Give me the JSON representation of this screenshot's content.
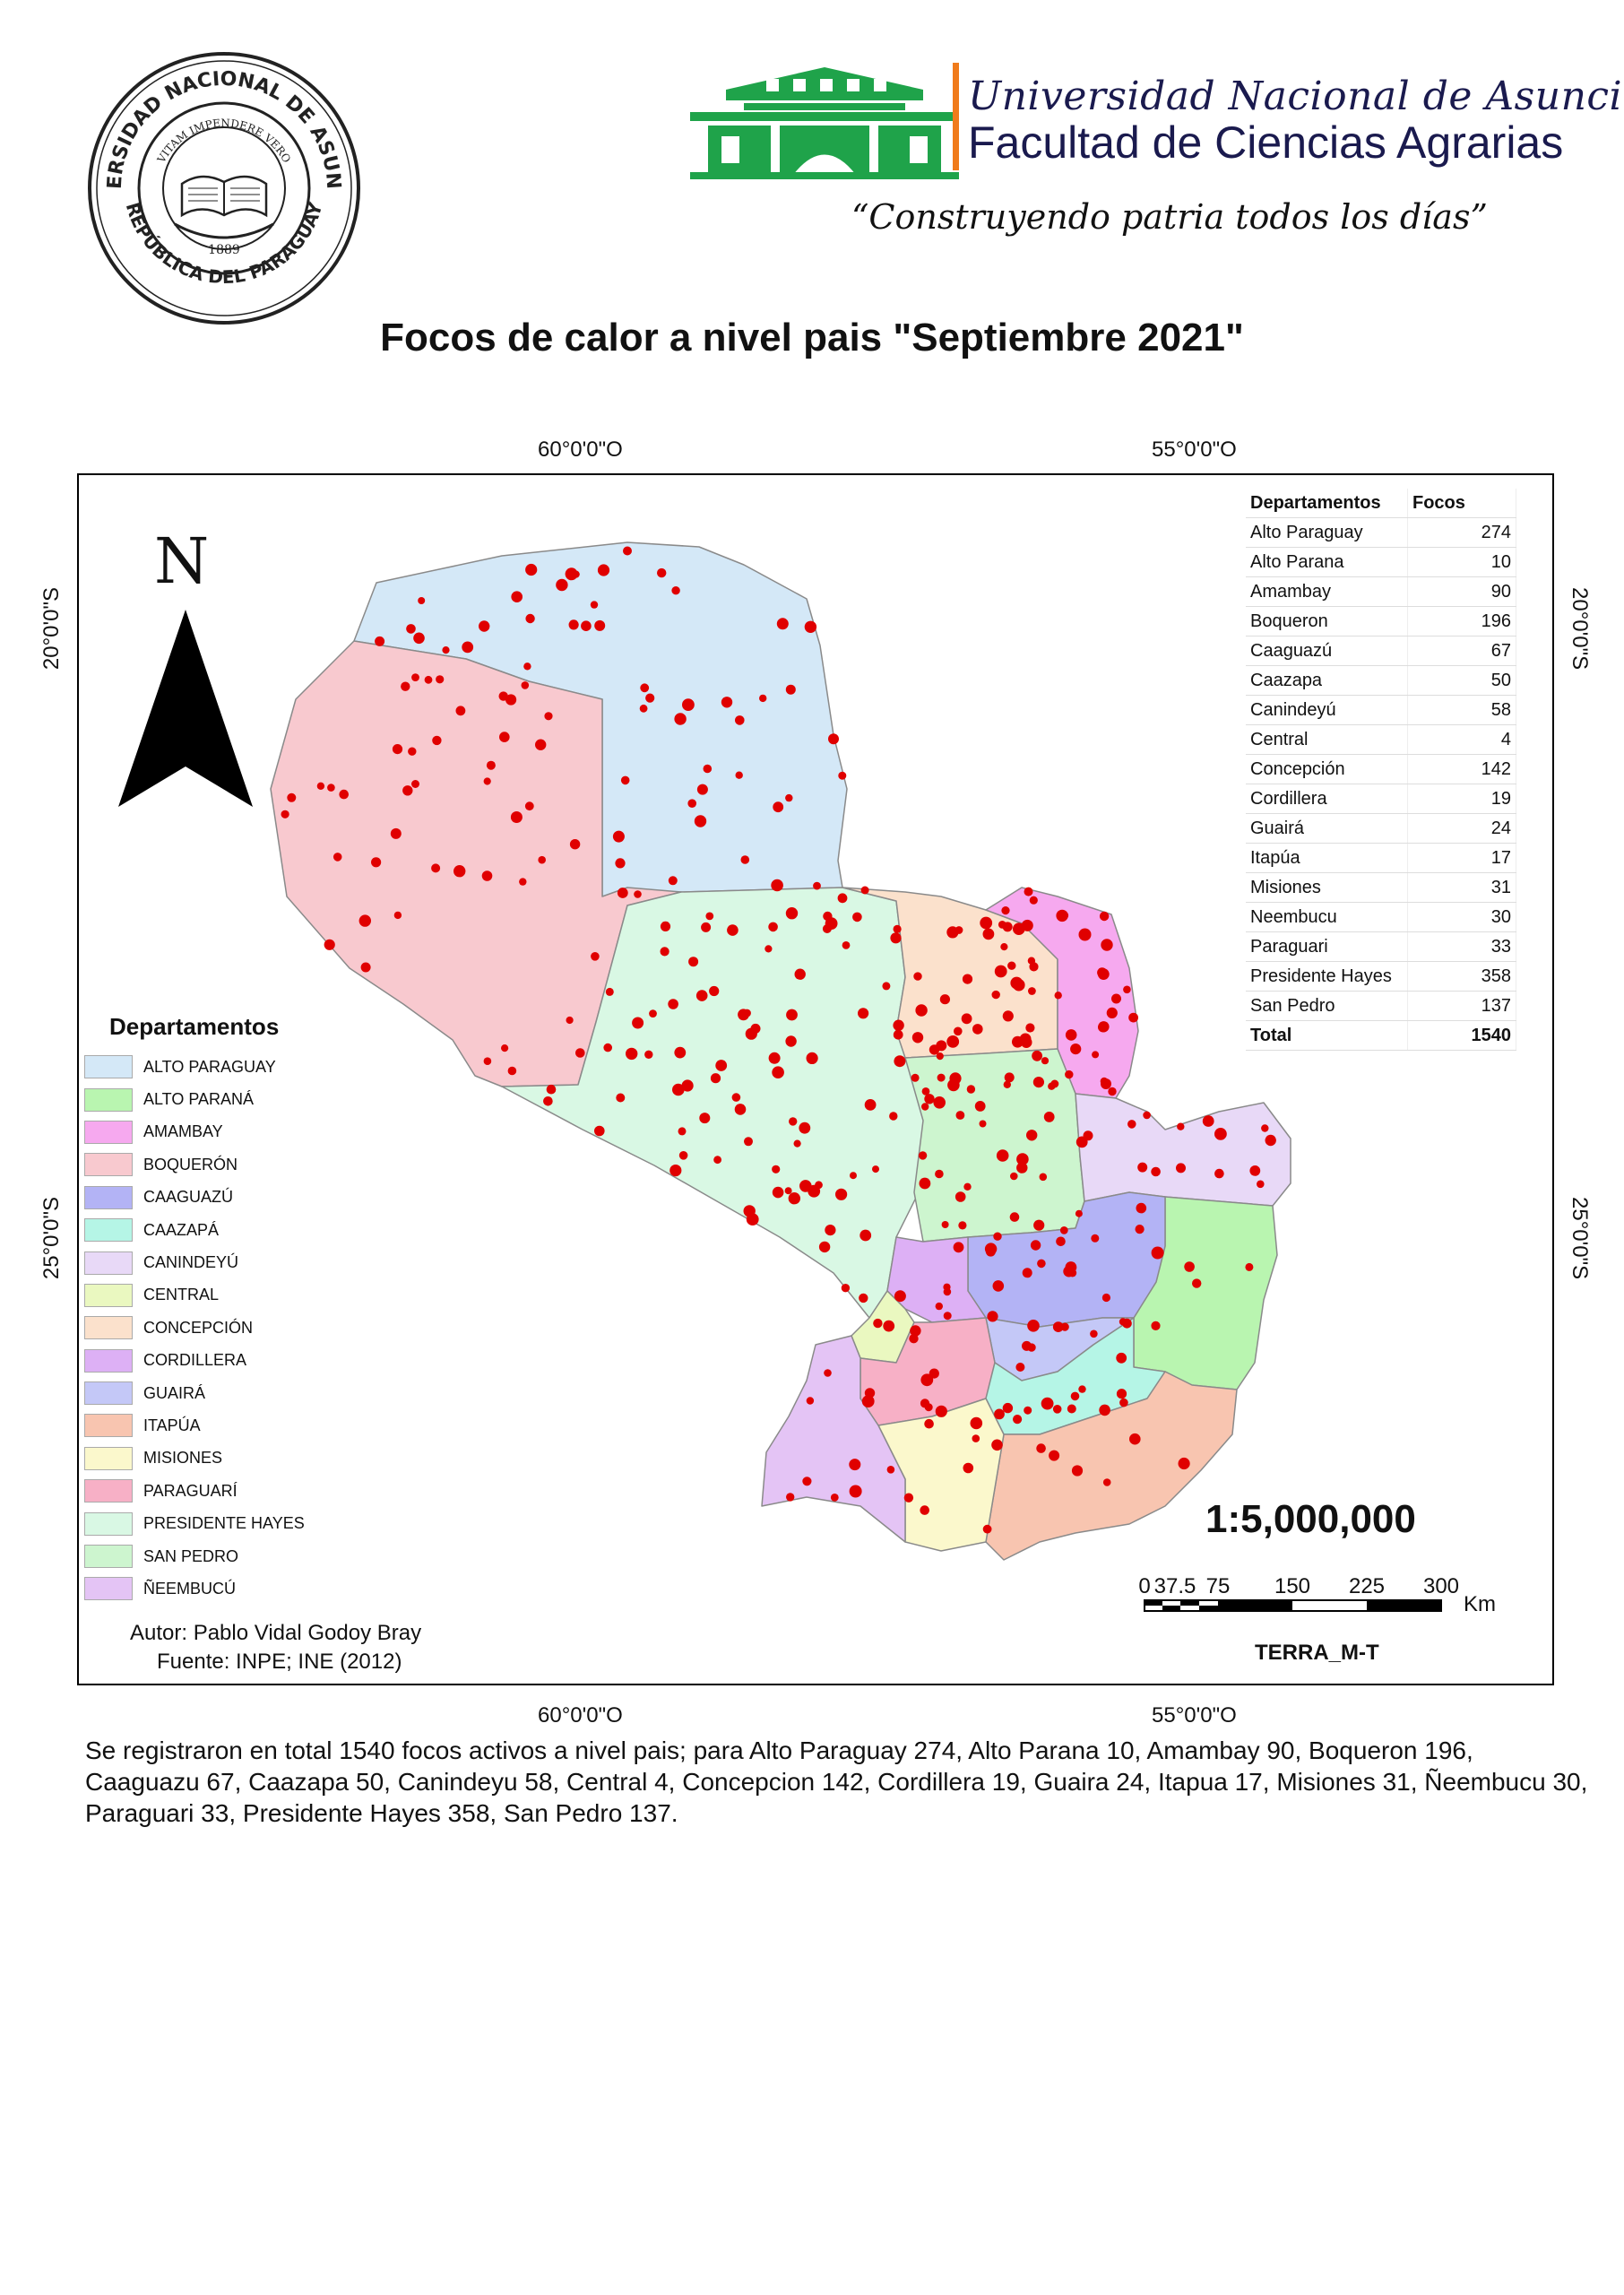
{
  "header": {
    "seal_text_top": "UNIVERSIDAD NACIONAL DE ASUNCIÓN",
    "seal_text_motto": "VITAM IMPENDERE VERO",
    "seal_year": "1889",
    "seal_text_bottom": "REPÚBLICA DEL PARAGUAY",
    "university": "Universidad Nacional de Asunción",
    "faculty": "Facultad de Ciencias Agrarias",
    "motto": "“Construyendo patria todos los días”"
  },
  "title": "Focos de calor a nivel pais \"Septiembre 2021\"",
  "coords": {
    "top_left": "60°0'0\"O",
    "top_right": "55°0'0\"O",
    "bottom_left": "60°0'0\"O",
    "bottom_right": "55°0'0\"O",
    "left_upper": "20°0'0\"S",
    "left_lower": "25°0'0\"S",
    "right_upper": "20°0'0\"S",
    "right_lower": "25°0'0\"S"
  },
  "north_label": "N",
  "table": {
    "header_name": "Departamentos",
    "header_value": "Focos",
    "rows": [
      {
        "name": "Alto Paraguay",
        "value": "274"
      },
      {
        "name": "Alto Parana",
        "value": "10"
      },
      {
        "name": "Amambay",
        "value": "90"
      },
      {
        "name": "Boqueron",
        "value": "196"
      },
      {
        "name": "Caaguazú",
        "value": "67"
      },
      {
        "name": "Caazapa",
        "value": "50"
      },
      {
        "name": "Canindeyú",
        "value": "58"
      },
      {
        "name": "Central",
        "value": "4"
      },
      {
        "name": "Concepción",
        "value": "142"
      },
      {
        "name": "Cordillera",
        "value": "19"
      },
      {
        "name": "Guairá",
        "value": "24"
      },
      {
        "name": "Itapúa",
        "value": "17"
      },
      {
        "name": "Misiones",
        "value": "31"
      },
      {
        "name": "Neembucu",
        "value": "30"
      },
      {
        "name": "Paraguari",
        "value": "33"
      },
      {
        "name": "Presidente Hayes",
        "value": "358"
      },
      {
        "name": "San Pedro",
        "value": "137"
      }
    ],
    "total_label": "Total",
    "total_value": "1540"
  },
  "legend": {
    "title": "Departamentos",
    "items": [
      {
        "label": "ALTO PARAGUAY",
        "color": "#d4e8f7"
      },
      {
        "label": "ALTO PARANÁ",
        "color": "#b9f5b0"
      },
      {
        "label": "AMAMBAY",
        "color": "#f6a9ef"
      },
      {
        "label": "BOQUERÓN",
        "color": "#f8c9cf"
      },
      {
        "label": "CAAGUAZÚ",
        "color": "#b3b3f5"
      },
      {
        "label": "CAAZAPÁ",
        "color": "#b5f5e6"
      },
      {
        "label": "CANINDEYÚ",
        "color": "#e8d9f7"
      },
      {
        "label": "CENTRAL",
        "color": "#eaf8c0"
      },
      {
        "label": "CONCEPCIÓN",
        "color": "#fbe1cc"
      },
      {
        "label": "CORDILLERA",
        "color": "#ddb0f5"
      },
      {
        "label": "GUAIRÁ",
        "color": "#c4c8f7"
      },
      {
        "label": "ITAPÚA",
        "color": "#f8c5b0"
      },
      {
        "label": "MISIONES",
        "color": "#fbf8cc"
      },
      {
        "label": "PARAGUARÍ",
        "color": "#f7b0c6"
      },
      {
        "label": "PRESIDENTE HAYES",
        "color": "#d9f8e4"
      },
      {
        "label": "SAN PEDRO",
        "color": "#cdf5cf"
      },
      {
        "label": "ÑEEMBUCÚ",
        "color": "#e4c4f5"
      }
    ]
  },
  "scale": {
    "ratio": "1:5,000,000",
    "ticks": [
      "0",
      "37.5",
      "75",
      "150",
      "225",
      "300"
    ],
    "unit": "Km"
  },
  "terra": "TERRA_M-T",
  "author": "Autor: Pablo Vidal Godoy Bray",
  "source": "Fuente: INPE; INE (2012)",
  "summary": "Se registraron en total 1540  focos activos a nivel pais; para Alto Paraguay 274, Alto Parana 10, Amambay 90, Boqueron 196, Caaguazu 67, Caazapa 50, Canindeyu 58, Central 4, Concepcion 142, Cordillera 19, Guaira 24, Itapua 17, Misiones 31, Ñeembucu 30, Paraguari 33, Presidente Hayes 358, San Pedro 137.",
  "colors": {
    "fire_dot": "#e00000",
    "logo_green": "#1fa34a",
    "accent_orange": "#f07b1b"
  }
}
